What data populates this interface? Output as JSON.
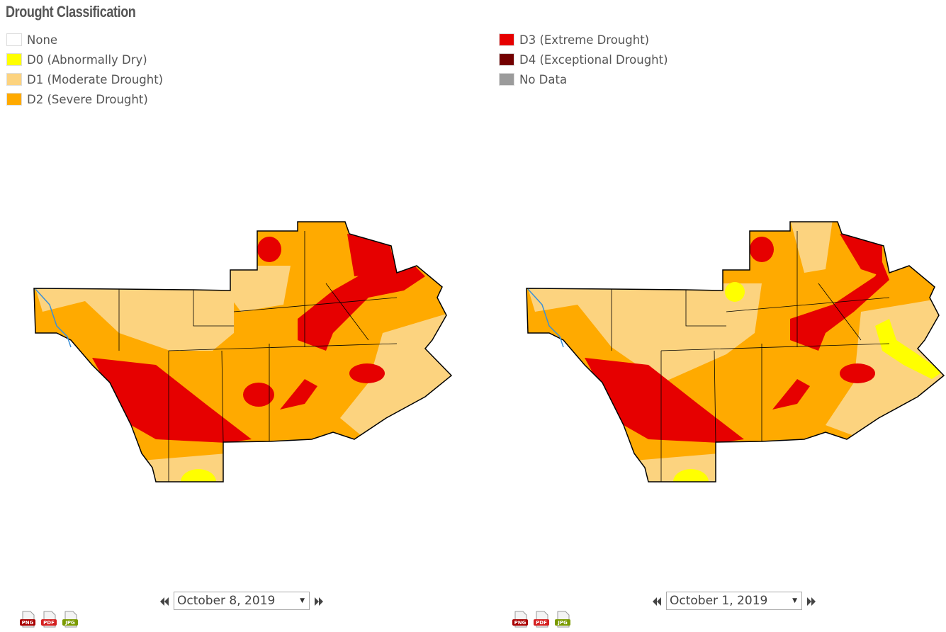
{
  "header": {
    "title": "Drought Classification"
  },
  "legend": [
    {
      "label": "None",
      "color": "#ffffff"
    },
    {
      "label": "D0 (Abnormally Dry)",
      "color": "#ffff00"
    },
    {
      "label": "D1 (Moderate Drought)",
      "color": "#fcd37f"
    },
    {
      "label": "D2 (Severe Drought)",
      "color": "#ffaa00"
    },
    {
      "label": "D3 (Extreme Drought)",
      "color": "#e60000"
    },
    {
      "label": "D4 (Exceptional Drought)",
      "color": "#730000"
    },
    {
      "label": "No Data",
      "color": "#9b9b9b"
    }
  ],
  "panels": [
    {
      "date": "October 8, 2019",
      "downloads": [
        "PNG",
        "PDF",
        "JPG"
      ]
    },
    {
      "date": "October 1, 2019",
      "downloads": [
        "PNG",
        "PDF",
        "JPG"
      ]
    }
  ]
}
